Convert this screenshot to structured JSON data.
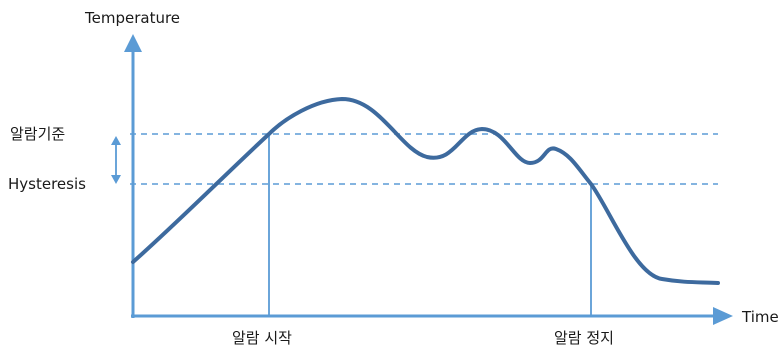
{
  "axes": {
    "y_label": "Temperature",
    "x_label": "Time"
  },
  "thresholds": {
    "alarm_label": "알람기준",
    "hysteresis_label": "Hysteresis"
  },
  "events": {
    "alarm_start_label": "알람 시작",
    "alarm_stop_label": "알람 정지"
  },
  "colors": {
    "axis": "#5b9bd5",
    "curve": "#3d6a9e",
    "threshold_line": "#5b9bd5",
    "marker_line": "#5b9bd5",
    "text": "#1a1a1a"
  }
}
